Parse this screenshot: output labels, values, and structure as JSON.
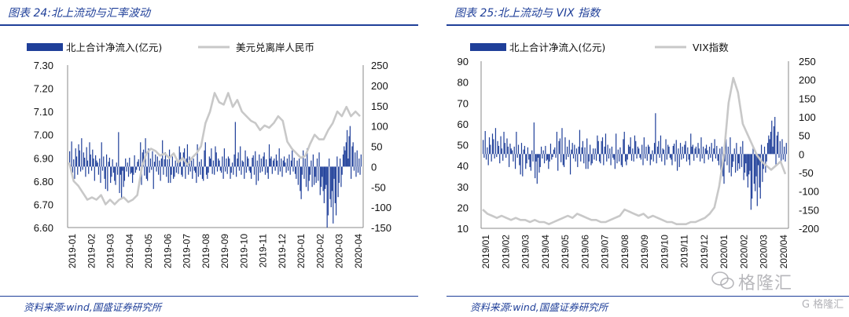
{
  "watermark": {
    "text": "格隆汇",
    "sub": "G 格隆汇",
    "logo": "wechat-icon"
  },
  "colors": {
    "bar": "#1f3f99",
    "line": "#c8c8c8",
    "title": "#1f3f99"
  },
  "chart_data": [
    {
      "type": "bar+line",
      "title": "图表 24:北上流动与汇率波动",
      "source": "资料来源:wind,国盛证券研究所",
      "legend": {
        "placement": "top",
        "bar_label": "北上合计净流入(亿元)",
        "line_label": "美元兑离岸人民币"
      },
      "x_ticks": [
        "2019-01",
        "2019-02",
        "2019-03",
        "2019-04",
        "2019-05",
        "2019-06",
        "2019-07",
        "2019-08",
        "2019-09",
        "2019-10",
        "2019-11",
        "2019-12",
        "2020-01",
        "2020-02",
        "2020-03",
        "2020-04"
      ],
      "left_axis": {
        "min": 6.6,
        "max": 7.3,
        "ticks": [
          "6.60",
          "6.70",
          "6.80",
          "6.90",
          "7.00",
          "7.10",
          "7.20",
          "7.30"
        ]
      },
      "right_axis": {
        "min": -150,
        "max": 250,
        "ticks": [
          "-150",
          "-100",
          "-50",
          "0",
          "50",
          "100",
          "150",
          "200",
          "250"
        ]
      },
      "bar_series": {
        "name": "北上合计净流入(亿元)",
        "axis": "right",
        "values": [
          38,
          -10,
          62,
          -15,
          18,
          -30,
          45,
          25,
          -20,
          55,
          40,
          -12,
          70,
          -8,
          35,
          22,
          -25,
          48,
          15,
          -18,
          60,
          30,
          -10,
          42,
          20,
          -35,
          28,
          15,
          10,
          -20,
          20,
          -40,
          60,
          -10,
          25,
          -30,
          -55,
          30,
          -60,
          12,
          22,
          -40,
          -25,
          18,
          -15,
          -35,
          -45,
          10,
          -20,
          85,
          -65,
          -20,
          -80,
          -10,
          -50,
          -35,
          20,
          -12,
          10,
          -25,
          22,
          -18,
          -15,
          -40,
          -20,
          28,
          -15,
          -8,
          12,
          18,
          -10,
          60,
          -45,
          35,
          42,
          -22,
          70,
          -30,
          -35,
          45,
          -15,
          20,
          -8,
          38,
          -55,
          12,
          30,
          -12,
          25,
          -20,
          15,
          -35,
          20,
          65,
          -20,
          18,
          35,
          -25,
          18,
          -40,
          42,
          -40,
          -20,
          25,
          -30,
          -25,
          15,
          -15,
          15,
          -18,
          50,
          35,
          -20,
          -25,
          35,
          45,
          -30,
          20,
          55,
          -20,
          25,
          -12,
          15,
          -30,
          20,
          -10,
          -15,
          -40,
          55,
          -25,
          12,
          -20,
          18,
          -30,
          -35,
          40,
          60,
          -20,
          -30,
          -15,
          25,
          20,
          45,
          -18,
          15,
          -20,
          50,
          35,
          -12,
          20,
          15,
          -10,
          -15,
          25,
          -30,
          45,
          -12,
          20,
          -18,
          25,
          20,
          -30,
          -15,
          10,
          -20,
          30,
          110,
          -25,
          20,
          35,
          -10,
          50,
          -20,
          15,
          12,
          -30,
          40,
          -15,
          25,
          20,
          -10,
          -15,
          -30,
          22,
          28,
          -20,
          38,
          -45,
          15,
          -35,
          30,
          -15,
          20,
          -12,
          25,
          35,
          -20,
          18,
          -15,
          -30,
          55,
          20,
          25,
          -18,
          15,
          20,
          -10,
          30,
          15,
          -20,
          45,
          -12,
          20,
          -25,
          15,
          25,
          10,
          -15,
          20,
          -10,
          30,
          -20,
          15,
          40,
          -12,
          22,
          -18,
          -30,
          15,
          -45,
          20,
          -60,
          -80,
          -20,
          40,
          -30,
          20,
          -50,
          45,
          -60,
          -35,
          -20,
          15,
          -50,
          30,
          -45,
          -25,
          -40,
          20,
          -35,
          35,
          -70,
          -50,
          -25,
          -60,
          -90,
          -55,
          -45,
          -150,
          -120,
          20,
          -80,
          -100,
          -60,
          -140,
          -30,
          -90,
          -120,
          25,
          -75,
          -40,
          20,
          -50,
          -20,
          30,
          50,
          40,
          60,
          90,
          20,
          75,
          100,
          -30,
          50,
          60,
          -10,
          35,
          -25,
          40,
          -15,
          20,
          -20,
          30
        ]
      },
      "line_series": {
        "name": "美元兑离岸人民币",
        "axis": "left",
        "points": [
          [
            0,
            6.88
          ],
          [
            1,
            6.8
          ],
          [
            2,
            6.78
          ],
          [
            3,
            6.75
          ],
          [
            4,
            6.72
          ],
          [
            5,
            6.73
          ],
          [
            6,
            6.72
          ],
          [
            7,
            6.74
          ],
          [
            8,
            6.7
          ],
          [
            9,
            6.72
          ],
          [
            10,
            6.7
          ],
          [
            11,
            6.72
          ],
          [
            12,
            6.73
          ],
          [
            13,
            6.71
          ],
          [
            14,
            6.72
          ],
          [
            15,
            6.74
          ],
          [
            16,
            6.86
          ],
          [
            17,
            6.92
          ],
          [
            18,
            6.94
          ],
          [
            19,
            6.93
          ],
          [
            20,
            6.91
          ],
          [
            21,
            6.92
          ],
          [
            22,
            6.9
          ],
          [
            23,
            6.92
          ],
          [
            24,
            6.88
          ],
          [
            25,
            6.9
          ],
          [
            26,
            6.87
          ],
          [
            27,
            6.9
          ],
          [
            28,
            6.92
          ],
          [
            29,
            6.95
          ],
          [
            30,
            7.05
          ],
          [
            31,
            7.1
          ],
          [
            32,
            7.18
          ],
          [
            33,
            7.14
          ],
          [
            34,
            7.13
          ],
          [
            35,
            7.18
          ],
          [
            36,
            7.12
          ],
          [
            37,
            7.15
          ],
          [
            38,
            7.1
          ],
          [
            39,
            7.08
          ],
          [
            40,
            7.06
          ],
          [
            41,
            7.05
          ],
          [
            42,
            7.02
          ],
          [
            43,
            7.04
          ],
          [
            44,
            7.03
          ],
          [
            45,
            7.05
          ],
          [
            46,
            7.08
          ],
          [
            47,
            7.06
          ],
          [
            48,
            6.97
          ],
          [
            49,
            6.94
          ],
          [
            50,
            6.92
          ],
          [
            51,
            6.9
          ],
          [
            52,
            6.91
          ],
          [
            53,
            6.96
          ],
          [
            54,
            7.0
          ],
          [
            55,
            6.98
          ],
          [
            56,
            6.98
          ],
          [
            57,
            7.02
          ],
          [
            58,
            7.05
          ],
          [
            59,
            7.1
          ],
          [
            60,
            7.08
          ],
          [
            61,
            7.12
          ],
          [
            62,
            7.08
          ],
          [
            63,
            7.1
          ],
          [
            64,
            7.08
          ]
        ]
      }
    },
    {
      "type": "bar+line",
      "title": "图表 25:北上流动与 VIX 指数",
      "source": "资料来源:wind,国盛证券研究所",
      "legend": {
        "placement": "top",
        "bar_label": "北上合计净流入(亿元)",
        "line_label": "VIX指数"
      },
      "x_ticks": [
        "2019/01",
        "2019/02",
        "2019/03",
        "2019/04",
        "2019/05",
        "2019/06",
        "2019/07",
        "2019/08",
        "2019/09",
        "2019/10",
        "2019/11",
        "2019/12",
        "2020/01",
        "2020/02",
        "2020/03",
        "2020/04"
      ],
      "left_axis": {
        "min": 10,
        "max": 90,
        "ticks": [
          "10",
          "20",
          "30",
          "40",
          "50",
          "60",
          "70",
          "80",
          "90"
        ]
      },
      "right_axis": {
        "min": -200,
        "max": 250,
        "ticks": [
          "-200",
          "-150",
          "-100",
          "-50",
          "0",
          "50",
          "100",
          "150",
          "200",
          "250"
        ]
      },
      "bar_series": {
        "name": "北上合计净流入(亿元)",
        "axis": "right",
        "values": [
          38,
          -10,
          62,
          -15,
          18,
          -30,
          45,
          25,
          -20,
          55,
          40,
          -12,
          70,
          -8,
          35,
          22,
          -25,
          48,
          15,
          -18,
          60,
          30,
          -10,
          42,
          20,
          -35,
          28,
          15,
          10,
          -20,
          20,
          -40,
          60,
          -10,
          25,
          -30,
          -55,
          30,
          -60,
          12,
          22,
          -40,
          -25,
          18,
          -15,
          -35,
          -45,
          10,
          -20,
          85,
          -65,
          -20,
          -80,
          -10,
          -50,
          -35,
          20,
          -12,
          10,
          -25,
          22,
          -18,
          -15,
          -40,
          -20,
          28,
          -15,
          -8,
          12,
          18,
          -10,
          60,
          -45,
          35,
          42,
          -22,
          70,
          -30,
          -35,
          45,
          -15,
          20,
          -8,
          38,
          -55,
          12,
          30,
          -12,
          25,
          -20,
          15,
          -35,
          20,
          65,
          -20,
          18,
          35,
          -25,
          18,
          -40,
          42,
          -40,
          -20,
          25,
          -30,
          -25,
          15,
          -15,
          15,
          -18,
          50,
          35,
          -20,
          -25,
          35,
          45,
          -30,
          20,
          55,
          -20,
          25,
          -12,
          15,
          -30,
          20,
          -10,
          -15,
          -40,
          55,
          -25,
          12,
          -20,
          18,
          -30,
          -35,
          40,
          60,
          -20,
          -30,
          -15,
          25,
          20,
          45,
          -18,
          15,
          -20,
          50,
          35,
          -12,
          20,
          15,
          -10,
          -15,
          25,
          -30,
          45,
          -12,
          20,
          -18,
          25,
          20,
          -30,
          -15,
          10,
          -20,
          30,
          110,
          -25,
          20,
          35,
          -10,
          50,
          -20,
          15,
          12,
          -30,
          40,
          -15,
          25,
          20,
          -10,
          -15,
          -30,
          22,
          28,
          -20,
          38,
          -45,
          15,
          -35,
          30,
          -15,
          20,
          -12,
          25,
          35,
          -20,
          18,
          -15,
          -30,
          55,
          20,
          25,
          -18,
          15,
          20,
          -10,
          30,
          15,
          -20,
          45,
          -12,
          20,
          -25,
          15,
          25,
          10,
          -15,
          20,
          -10,
          30,
          -20,
          15,
          40,
          -12,
          22,
          -18,
          -30,
          15,
          -45,
          20,
          -60,
          -80,
          -20,
          40,
          -30,
          20,
          -50,
          45,
          -60,
          -35,
          -20,
          15,
          -50,
          30,
          -45,
          -25,
          -40,
          20,
          -35,
          35,
          -70,
          -50,
          -25,
          -60,
          -90,
          -55,
          -45,
          -150,
          -120,
          20,
          -80,
          -100,
          -60,
          -140,
          -30,
          -90,
          -120,
          25,
          -75,
          -40,
          20,
          -50,
          -20,
          30,
          50,
          40,
          60,
          90,
          20,
          75,
          100,
          -30,
          50,
          60,
          -10,
          35,
          -25,
          40,
          -15,
          20,
          -20,
          30
        ]
      },
      "line_series": {
        "name": "VIX指数",
        "axis": "left",
        "points": [
          [
            0,
            19
          ],
          [
            1,
            17
          ],
          [
            2,
            16
          ],
          [
            3,
            15
          ],
          [
            4,
            16
          ],
          [
            5,
            15
          ],
          [
            6,
            14
          ],
          [
            7,
            15
          ],
          [
            8,
            14
          ],
          [
            9,
            14
          ],
          [
            10,
            13
          ],
          [
            11,
            14
          ],
          [
            12,
            13
          ],
          [
            13,
            13
          ],
          [
            14,
            12
          ],
          [
            15,
            13
          ],
          [
            16,
            14
          ],
          [
            17,
            15
          ],
          [
            18,
            16
          ],
          [
            19,
            15
          ],
          [
            20,
            17
          ],
          [
            21,
            16
          ],
          [
            22,
            15
          ],
          [
            23,
            14
          ],
          [
            24,
            14
          ],
          [
            25,
            13
          ],
          [
            26,
            13
          ],
          [
            27,
            14
          ],
          [
            28,
            15
          ],
          [
            29,
            16
          ],
          [
            30,
            19
          ],
          [
            31,
            18
          ],
          [
            32,
            17
          ],
          [
            33,
            16
          ],
          [
            34,
            17
          ],
          [
            35,
            15
          ],
          [
            36,
            16
          ],
          [
            37,
            15
          ],
          [
            38,
            14
          ],
          [
            39,
            13
          ],
          [
            40,
            13
          ],
          [
            41,
            12
          ],
          [
            42,
            12
          ],
          [
            43,
            12
          ],
          [
            44,
            13
          ],
          [
            45,
            13
          ],
          [
            46,
            14
          ],
          [
            47,
            15
          ],
          [
            48,
            17
          ],
          [
            49,
            20
          ],
          [
            50,
            30
          ],
          [
            51,
            45
          ],
          [
            52,
            70
          ],
          [
            53,
            82
          ],
          [
            54,
            75
          ],
          [
            55,
            60
          ],
          [
            56,
            55
          ],
          [
            57,
            50
          ],
          [
            58,
            45
          ],
          [
            59,
            42
          ],
          [
            60,
            40
          ],
          [
            61,
            38
          ],
          [
            62,
            40
          ],
          [
            63,
            42
          ],
          [
            64,
            36
          ]
        ]
      }
    }
  ]
}
